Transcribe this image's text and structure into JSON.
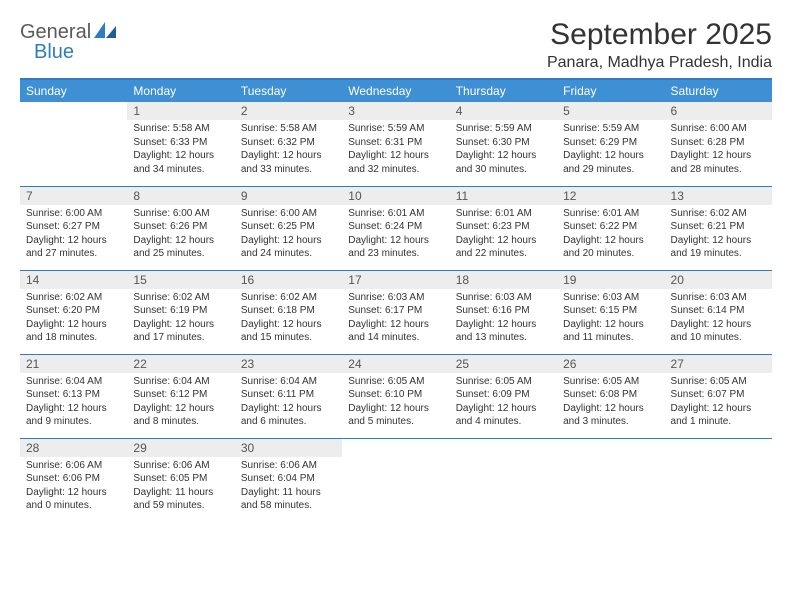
{
  "brand": {
    "part1": "General",
    "part2": "Blue",
    "mark_color": "#2f7dc0"
  },
  "title": "September 2025",
  "subtitle": "Panara, Madhya Pradesh, India",
  "colors": {
    "header_bg": "#3f8fd4",
    "border": "#2f7dc0",
    "daynum_bg": "#ededed",
    "text": "#333333",
    "background": "#ffffff"
  },
  "fonts": {
    "title_size": 30,
    "subtitle_size": 16,
    "weekday_size": 12,
    "daynum_size": 12,
    "body_size": 10
  },
  "weekdays": [
    "Sunday",
    "Monday",
    "Tuesday",
    "Wednesday",
    "Thursday",
    "Friday",
    "Saturday"
  ],
  "weeks": [
    [
      {
        "n": "",
        "sr": "",
        "ss": "",
        "dl": ""
      },
      {
        "n": "1",
        "sr": "5:58 AM",
        "ss": "6:33 PM",
        "dl": "12 hours and 34 minutes."
      },
      {
        "n": "2",
        "sr": "5:58 AM",
        "ss": "6:32 PM",
        "dl": "12 hours and 33 minutes."
      },
      {
        "n": "3",
        "sr": "5:59 AM",
        "ss": "6:31 PM",
        "dl": "12 hours and 32 minutes."
      },
      {
        "n": "4",
        "sr": "5:59 AM",
        "ss": "6:30 PM",
        "dl": "12 hours and 30 minutes."
      },
      {
        "n": "5",
        "sr": "5:59 AM",
        "ss": "6:29 PM",
        "dl": "12 hours and 29 minutes."
      },
      {
        "n": "6",
        "sr": "6:00 AM",
        "ss": "6:28 PM",
        "dl": "12 hours and 28 minutes."
      }
    ],
    [
      {
        "n": "7",
        "sr": "6:00 AM",
        "ss": "6:27 PM",
        "dl": "12 hours and 27 minutes."
      },
      {
        "n": "8",
        "sr": "6:00 AM",
        "ss": "6:26 PM",
        "dl": "12 hours and 25 minutes."
      },
      {
        "n": "9",
        "sr": "6:00 AM",
        "ss": "6:25 PM",
        "dl": "12 hours and 24 minutes."
      },
      {
        "n": "10",
        "sr": "6:01 AM",
        "ss": "6:24 PM",
        "dl": "12 hours and 23 minutes."
      },
      {
        "n": "11",
        "sr": "6:01 AM",
        "ss": "6:23 PM",
        "dl": "12 hours and 22 minutes."
      },
      {
        "n": "12",
        "sr": "6:01 AM",
        "ss": "6:22 PM",
        "dl": "12 hours and 20 minutes."
      },
      {
        "n": "13",
        "sr": "6:02 AM",
        "ss": "6:21 PM",
        "dl": "12 hours and 19 minutes."
      }
    ],
    [
      {
        "n": "14",
        "sr": "6:02 AM",
        "ss": "6:20 PM",
        "dl": "12 hours and 18 minutes."
      },
      {
        "n": "15",
        "sr": "6:02 AM",
        "ss": "6:19 PM",
        "dl": "12 hours and 17 minutes."
      },
      {
        "n": "16",
        "sr": "6:02 AM",
        "ss": "6:18 PM",
        "dl": "12 hours and 15 minutes."
      },
      {
        "n": "17",
        "sr": "6:03 AM",
        "ss": "6:17 PM",
        "dl": "12 hours and 14 minutes."
      },
      {
        "n": "18",
        "sr": "6:03 AM",
        "ss": "6:16 PM",
        "dl": "12 hours and 13 minutes."
      },
      {
        "n": "19",
        "sr": "6:03 AM",
        "ss": "6:15 PM",
        "dl": "12 hours and 11 minutes."
      },
      {
        "n": "20",
        "sr": "6:03 AM",
        "ss": "6:14 PM",
        "dl": "12 hours and 10 minutes."
      }
    ],
    [
      {
        "n": "21",
        "sr": "6:04 AM",
        "ss": "6:13 PM",
        "dl": "12 hours and 9 minutes."
      },
      {
        "n": "22",
        "sr": "6:04 AM",
        "ss": "6:12 PM",
        "dl": "12 hours and 8 minutes."
      },
      {
        "n": "23",
        "sr": "6:04 AM",
        "ss": "6:11 PM",
        "dl": "12 hours and 6 minutes."
      },
      {
        "n": "24",
        "sr": "6:05 AM",
        "ss": "6:10 PM",
        "dl": "12 hours and 5 minutes."
      },
      {
        "n": "25",
        "sr": "6:05 AM",
        "ss": "6:09 PM",
        "dl": "12 hours and 4 minutes."
      },
      {
        "n": "26",
        "sr": "6:05 AM",
        "ss": "6:08 PM",
        "dl": "12 hours and 3 minutes."
      },
      {
        "n": "27",
        "sr": "6:05 AM",
        "ss": "6:07 PM",
        "dl": "12 hours and 1 minute."
      }
    ],
    [
      {
        "n": "28",
        "sr": "6:06 AM",
        "ss": "6:06 PM",
        "dl": "12 hours and 0 minutes."
      },
      {
        "n": "29",
        "sr": "6:06 AM",
        "ss": "6:05 PM",
        "dl": "11 hours and 59 minutes."
      },
      {
        "n": "30",
        "sr": "6:06 AM",
        "ss": "6:04 PM",
        "dl": "11 hours and 58 minutes."
      },
      {
        "n": "",
        "sr": "",
        "ss": "",
        "dl": ""
      },
      {
        "n": "",
        "sr": "",
        "ss": "",
        "dl": ""
      },
      {
        "n": "",
        "sr": "",
        "ss": "",
        "dl": ""
      },
      {
        "n": "",
        "sr": "",
        "ss": "",
        "dl": ""
      }
    ]
  ],
  "labels": {
    "sunrise": "Sunrise:",
    "sunset": "Sunset:",
    "daylight": "Daylight:"
  }
}
